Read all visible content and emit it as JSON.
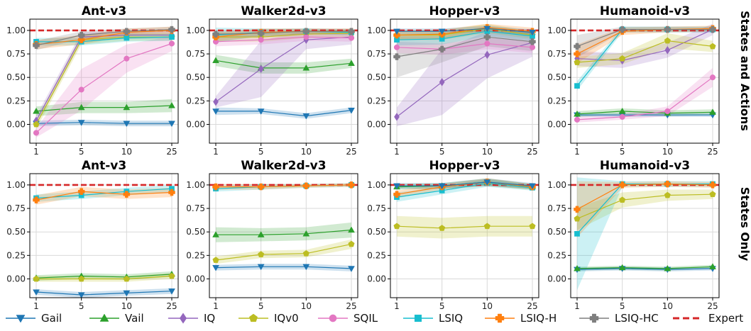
{
  "chart_data": {
    "type": "line",
    "x": [
      1,
      5,
      10,
      25
    ],
    "x_tick_labels": [
      "1",
      "5",
      "10",
      "25"
    ],
    "ylim": [
      -0.2,
      1.12
    ],
    "y_ticks": [
      0.0,
      0.25,
      0.5,
      0.75,
      1.0
    ],
    "y_tick_labels": [
      "0.00",
      "0.25",
      "0.50",
      "0.75",
      "1.00"
    ],
    "grid": true,
    "legend_position": "bottom",
    "row_labels": [
      "States and Actions",
      "States Only"
    ],
    "legend": [
      {
        "key": "gail",
        "name": "Gail",
        "color": "#1f77b4",
        "marker": "triangle-down"
      },
      {
        "key": "vail",
        "name": "Vail",
        "color": "#2ca02c",
        "marker": "triangle-up"
      },
      {
        "key": "iq",
        "name": "IQ",
        "color": "#9467bd",
        "marker": "diamond"
      },
      {
        "key": "iqv0",
        "name": "IQv0",
        "color": "#bcbd22",
        "marker": "pentagon"
      },
      {
        "key": "sqil",
        "name": "SQIL",
        "color": "#e377c2",
        "marker": "circle"
      },
      {
        "key": "lsiq",
        "name": "LSIQ",
        "color": "#17becf",
        "marker": "square"
      },
      {
        "key": "lsiqh",
        "name": "LSIQ-H",
        "color": "#ff7f0e",
        "marker": "plus"
      },
      {
        "key": "lsiqhc",
        "name": "LSIQ-HC",
        "color": "#7f7f7f",
        "marker": "plus"
      },
      {
        "key": "expert",
        "name": "Expert",
        "color": "#d62728",
        "marker": "dashed-line"
      }
    ],
    "expert_value": 1.0,
    "panels": [
      {
        "row": 0,
        "col": 0,
        "title": "Ant-v3",
        "series": [
          {
            "key": "gail",
            "values": [
              0.01,
              0.02,
              0.01,
              0.01
            ],
            "spread": [
              0.03,
              0.03,
              0.03,
              0.03
            ]
          },
          {
            "key": "vail",
            "values": [
              0.14,
              0.18,
              0.18,
              0.2
            ],
            "spread": [
              0.05,
              0.06,
              0.06,
              0.07
            ]
          },
          {
            "key": "iq",
            "values": [
              0.04,
              0.93,
              0.95,
              0.95
            ],
            "spread": [
              0.05,
              0.05,
              0.04,
              0.04
            ]
          },
          {
            "key": "iqv0",
            "values": [
              0.0,
              0.9,
              0.93,
              0.93
            ],
            "spread": [
              0.05,
              0.05,
              0.04,
              0.04
            ]
          },
          {
            "key": "sqil",
            "values": [
              -0.09,
              0.37,
              0.7,
              0.86
            ],
            "spread": [
              0.05,
              0.22,
              0.15,
              0.08
            ]
          },
          {
            "key": "lsiq",
            "values": [
              0.88,
              0.88,
              0.92,
              0.93
            ],
            "spread": [
              0.04,
              0.04,
              0.04,
              0.04
            ]
          },
          {
            "key": "lsiqh",
            "values": [
              0.85,
              0.9,
              0.98,
              1.0
            ],
            "spread": [
              0.05,
              0.05,
              0.04,
              0.04
            ]
          },
          {
            "key": "lsiqhc",
            "values": [
              0.84,
              0.95,
              0.99,
              1.01
            ],
            "spread": [
              0.05,
              0.04,
              0.03,
              0.03
            ]
          }
        ]
      },
      {
        "row": 0,
        "col": 1,
        "title": "Walker2d-v3",
        "series": [
          {
            "key": "gail",
            "values": [
              0.14,
              0.14,
              0.09,
              0.15
            ],
            "spread": [
              0.04,
              0.03,
              0.03,
              0.03
            ]
          },
          {
            "key": "vail",
            "values": [
              0.68,
              0.6,
              0.6,
              0.65
            ],
            "spread": [
              0.06,
              0.06,
              0.06,
              0.05
            ]
          },
          {
            "key": "iq",
            "values": [
              0.24,
              0.59,
              0.9,
              0.93
            ],
            "spread": [
              0.06,
              0.3,
              0.1,
              0.08
            ]
          },
          {
            "key": "iqv0",
            "values": [
              0.93,
              0.93,
              0.96,
              0.97
            ],
            "spread": [
              0.05,
              0.05,
              0.04,
              0.04
            ]
          },
          {
            "key": "sqil",
            "values": [
              0.88,
              0.9,
              0.93,
              0.92
            ],
            "spread": [
              0.05,
              0.05,
              0.04,
              0.04
            ]
          },
          {
            "key": "lsiq",
            "values": [
              0.95,
              0.98,
              0.99,
              0.98
            ],
            "spread": [
              0.08,
              0.04,
              0.03,
              0.03
            ]
          },
          {
            "key": "lsiqh",
            "values": [
              0.93,
              0.98,
              0.99,
              0.99
            ],
            "spread": [
              0.05,
              0.04,
              0.03,
              0.03
            ]
          },
          {
            "key": "lsiqhc",
            "values": [
              0.96,
              0.97,
              0.99,
              0.99
            ],
            "spread": [
              0.04,
              0.04,
              0.03,
              0.03
            ]
          }
        ]
      },
      {
        "row": 0,
        "col": 2,
        "title": "Hopper-v3",
        "series": [
          {
            "key": "iq",
            "values": [
              0.08,
              0.45,
              0.74,
              0.87
            ],
            "spread": [
              0.1,
              0.35,
              0.25,
              0.15
            ]
          },
          {
            "key": "iqv0",
            "values": [
              0.95,
              0.95,
              1.02,
              0.95
            ],
            "spread": [
              0.05,
              0.05,
              0.05,
              0.04
            ]
          },
          {
            "key": "sqil",
            "values": [
              0.82,
              0.8,
              0.86,
              0.82
            ],
            "spread": [
              0.06,
              0.06,
              0.06,
              0.06
            ]
          },
          {
            "key": "lsiq",
            "values": [
              0.9,
              0.91,
              0.99,
              0.94
            ],
            "spread": [
              0.06,
              0.06,
              0.05,
              0.05
            ]
          },
          {
            "key": "lsiqh",
            "values": [
              0.95,
              0.96,
              1.03,
              0.99
            ],
            "spread": [
              0.05,
              0.05,
              0.04,
              0.04
            ]
          },
          {
            "key": "lsiqhc",
            "values": [
              0.72,
              0.8,
              0.93,
              0.88
            ],
            "spread": [
              0.22,
              0.14,
              0.1,
              0.1
            ]
          },
          {
            "key": "gail",
            "values": [
              0.99,
              0.99,
              1.02,
              0.98
            ],
            "spread": [
              0.03,
              0.03,
              0.03,
              0.03
            ]
          }
        ]
      },
      {
        "row": 0,
        "col": 3,
        "title": "Humanoid-v3",
        "series": [
          {
            "key": "gail",
            "values": [
              0.1,
              0.1,
              0.1,
              0.1
            ],
            "spread": [
              0.02,
              0.02,
              0.02,
              0.02
            ]
          },
          {
            "key": "vail",
            "values": [
              0.11,
              0.14,
              0.12,
              0.13
            ],
            "spread": [
              0.03,
              0.03,
              0.03,
              0.03
            ]
          },
          {
            "key": "iq",
            "values": [
              0.7,
              0.68,
              0.79,
              1.01
            ],
            "spread": [
              0.08,
              0.08,
              0.08,
              0.06
            ]
          },
          {
            "key": "iqv0",
            "values": [
              0.66,
              0.7,
              0.89,
              0.83
            ],
            "spread": [
              0.06,
              0.06,
              0.08,
              0.06
            ]
          },
          {
            "key": "sqil",
            "values": [
              0.05,
              0.08,
              0.14,
              0.5
            ],
            "spread": [
              0.03,
              0.03,
              0.05,
              0.1
            ]
          },
          {
            "key": "lsiq",
            "values": [
              0.41,
              1.01,
              1.01,
              1.01
            ],
            "spread": [
              0.05,
              0.03,
              0.03,
              0.03
            ]
          },
          {
            "key": "lsiqh",
            "values": [
              0.75,
              0.99,
              1.01,
              1.02
            ],
            "spread": [
              0.1,
              0.04,
              0.03,
              0.03
            ]
          },
          {
            "key": "lsiqhc",
            "values": [
              0.83,
              1.01,
              1.01,
              1.01
            ],
            "spread": [
              0.12,
              0.03,
              0.03,
              0.03
            ]
          }
        ]
      },
      {
        "row": 1,
        "col": 0,
        "title": "Ant-v3",
        "series": [
          {
            "key": "gail",
            "values": [
              -0.14,
              -0.17,
              -0.15,
              -0.13
            ],
            "spread": [
              0.03,
              0.03,
              0.03,
              0.03
            ]
          },
          {
            "key": "vail",
            "values": [
              0.01,
              0.03,
              0.02,
              0.05
            ],
            "spread": [
              0.03,
              0.03,
              0.03,
              0.03
            ]
          },
          {
            "key": "iqv0",
            "values": [
              0.0,
              0.0,
              0.0,
              0.03
            ],
            "spread": [
              0.03,
              0.03,
              0.03,
              0.03
            ]
          },
          {
            "key": "lsiq",
            "values": [
              0.86,
              0.89,
              0.93,
              0.96
            ],
            "spread": [
              0.04,
              0.04,
              0.04,
              0.04
            ]
          },
          {
            "key": "lsiqh",
            "values": [
              0.84,
              0.93,
              0.9,
              0.92
            ],
            "spread": [
              0.05,
              0.05,
              0.05,
              0.05
            ]
          }
        ]
      },
      {
        "row": 1,
        "col": 1,
        "title": "Walker2d-v3",
        "series": [
          {
            "key": "gail",
            "values": [
              0.12,
              0.13,
              0.13,
              0.11
            ],
            "spread": [
              0.03,
              0.03,
              0.03,
              0.03
            ]
          },
          {
            "key": "vail",
            "values": [
              0.47,
              0.47,
              0.48,
              0.52
            ],
            "spread": [
              0.08,
              0.07,
              0.07,
              0.08
            ]
          },
          {
            "key": "iqv0",
            "values": [
              0.2,
              0.26,
              0.27,
              0.37
            ],
            "spread": [
              0.04,
              0.04,
              0.04,
              0.05
            ]
          },
          {
            "key": "lsiq",
            "values": [
              0.96,
              0.98,
              0.99,
              1.0
            ],
            "spread": [
              0.03,
              0.03,
              0.02,
              0.02
            ]
          },
          {
            "key": "lsiqh",
            "values": [
              0.98,
              0.98,
              0.99,
              1.0
            ],
            "spread": [
              0.03,
              0.03,
              0.02,
              0.02
            ]
          }
        ]
      },
      {
        "row": 1,
        "col": 2,
        "title": "Hopper-v3",
        "series": [
          {
            "key": "iqv0",
            "values": [
              0.56,
              0.54,
              0.56,
              0.56
            ],
            "spread": [
              0.11,
              0.11,
              0.11,
              0.11
            ]
          },
          {
            "key": "vail",
            "values": [
              0.98,
              0.99,
              1.03,
              0.98
            ],
            "spread": [
              0.03,
              0.03,
              0.04,
              0.03
            ]
          },
          {
            "key": "lsiq",
            "values": [
              0.87,
              0.94,
              1.02,
              0.97
            ],
            "spread": [
              0.05,
              0.04,
              0.04,
              0.03
            ]
          },
          {
            "key": "lsiqh",
            "values": [
              0.9,
              0.98,
              1.03,
              0.98
            ],
            "spread": [
              0.04,
              0.03,
              0.04,
              0.03
            ]
          },
          {
            "key": "gail",
            "values": [
              0.99,
              0.99,
              1.03,
              0.99
            ],
            "spread": [
              0.03,
              0.03,
              0.04,
              0.03
            ]
          }
        ]
      },
      {
        "row": 1,
        "col": 3,
        "title": "Humanoid-v3",
        "series": [
          {
            "key": "gail",
            "values": [
              0.1,
              0.11,
              0.1,
              0.11
            ],
            "spread": [
              0.02,
              0.02,
              0.02,
              0.02
            ]
          },
          {
            "key": "vail",
            "values": [
              0.11,
              0.12,
              0.11,
              0.13
            ],
            "spread": [
              0.02,
              0.02,
              0.02,
              0.02
            ]
          },
          {
            "key": "iqv0",
            "values": [
              0.64,
              0.84,
              0.89,
              0.9
            ],
            "spread": [
              0.12,
              0.08,
              0.06,
              0.05
            ]
          },
          {
            "key": "lsiq",
            "values": [
              0.48,
              1.01,
              1.01,
              1.01
            ],
            "spread": [
              0.6,
              0.03,
              0.03,
              0.03
            ]
          },
          {
            "key": "lsiqh",
            "values": [
              0.74,
              1.0,
              1.01,
              1.0
            ],
            "spread": [
              0.3,
              0.03,
              0.03,
              0.03
            ]
          }
        ]
      }
    ]
  }
}
